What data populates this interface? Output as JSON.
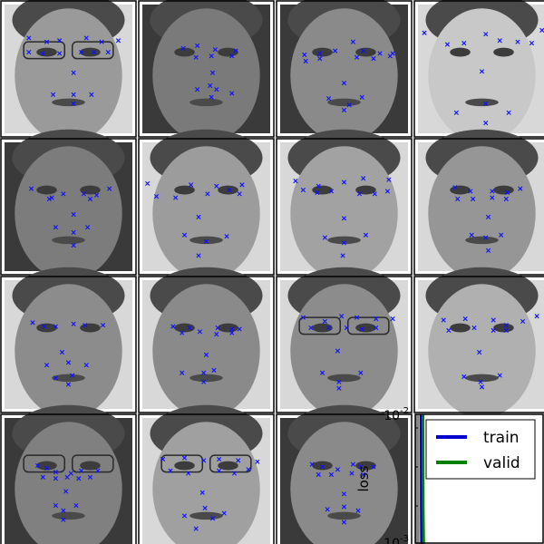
{
  "figure": {
    "grid": {
      "rows": 4,
      "cols": 4
    },
    "face_panels": [
      {
        "id": 1,
        "tone": "#9a9a9a",
        "dark_bg": false,
        "glasses": true,
        "keypoints": [
          [
            0.19,
            0.26
          ],
          [
            0.33,
            0.29
          ],
          [
            0.43,
            0.28
          ],
          [
            0.64,
            0.26
          ],
          [
            0.76,
            0.29
          ],
          [
            0.89,
            0.28
          ],
          [
            0.19,
            0.37
          ],
          [
            0.3,
            0.38
          ],
          [
            0.43,
            0.38
          ],
          [
            0.6,
            0.37
          ],
          [
            0.7,
            0.37
          ],
          [
            0.81,
            0.37
          ],
          [
            0.54,
            0.53
          ],
          [
            0.38,
            0.7
          ],
          [
            0.54,
            0.7
          ],
          [
            0.68,
            0.7
          ],
          [
            0.54,
            0.77
          ]
        ]
      },
      {
        "id": 2,
        "tone": "#7a7a7a",
        "dark_bg": true,
        "glasses": false,
        "keypoints": [
          [
            0.32,
            0.34
          ],
          [
            0.43,
            0.32
          ],
          [
            0.57,
            0.35
          ],
          [
            0.73,
            0.36
          ],
          [
            0.42,
            0.41
          ],
          [
            0.54,
            0.4
          ],
          [
            0.7,
            0.4
          ],
          [
            0.55,
            0.53
          ],
          [
            0.53,
            0.63
          ],
          [
            0.43,
            0.66
          ],
          [
            0.58,
            0.66
          ],
          [
            0.7,
            0.69
          ],
          [
            0.54,
            0.72
          ]
        ]
      },
      {
        "id": 3,
        "tone": "#8a8a8a",
        "dark_bg": true,
        "glasses": false,
        "keypoints": [
          [
            0.19,
            0.39
          ],
          [
            0.31,
            0.38
          ],
          [
            0.43,
            0.36
          ],
          [
            0.57,
            0.29
          ],
          [
            0.65,
            0.36
          ],
          [
            0.78,
            0.38
          ],
          [
            0.88,
            0.38
          ],
          [
            0.2,
            0.44
          ],
          [
            0.31,
            0.42
          ],
          [
            0.6,
            0.41
          ],
          [
            0.73,
            0.42
          ],
          [
            0.86,
            0.4
          ],
          [
            0.5,
            0.61
          ],
          [
            0.38,
            0.73
          ],
          [
            0.54,
            0.78
          ],
          [
            0.64,
            0.72
          ],
          [
            0.5,
            0.82
          ]
        ]
      },
      {
        "id": 4,
        "tone": "#c8c8c8",
        "dark_bg": false,
        "glasses": false,
        "keypoints": [
          [
            0.05,
            0.22
          ],
          [
            0.23,
            0.31
          ],
          [
            0.36,
            0.3
          ],
          [
            0.53,
            0.23
          ],
          [
            0.64,
            0.28
          ],
          [
            0.78,
            0.29
          ],
          [
            0.89,
            0.3
          ],
          [
            0.97,
            0.2
          ],
          [
            0.5,
            0.52
          ],
          [
            0.3,
            0.84
          ],
          [
            0.53,
            0.77
          ],
          [
            0.71,
            0.84
          ],
          [
            0.53,
            0.92
          ]
        ]
      },
      {
        "id": 5,
        "tone": "#7c7c7c",
        "dark_bg": true,
        "glasses": false,
        "keypoints": [
          [
            0.21,
            0.36
          ],
          [
            0.37,
            0.43
          ],
          [
            0.46,
            0.4
          ],
          [
            0.62,
            0.4
          ],
          [
            0.72,
            0.41
          ],
          [
            0.82,
            0.36
          ],
          [
            0.35,
            0.44
          ],
          [
            0.67,
            0.44
          ],
          [
            0.54,
            0.56
          ],
          [
            0.4,
            0.66
          ],
          [
            0.54,
            0.7
          ],
          [
            0.65,
            0.66
          ],
          [
            0.54,
            0.8
          ]
        ]
      },
      {
        "id": 6,
        "tone": "#9c9c9c",
        "dark_bg": false,
        "glasses": false,
        "keypoints": [
          [
            0.04,
            0.32
          ],
          [
            0.11,
            0.42
          ],
          [
            0.38,
            0.33
          ],
          [
            0.58,
            0.34
          ],
          [
            0.78,
            0.33
          ],
          [
            0.26,
            0.43
          ],
          [
            0.51,
            0.4
          ],
          [
            0.68,
            0.37
          ],
          [
            0.76,
            0.4
          ],
          [
            0.44,
            0.58
          ],
          [
            0.33,
            0.72
          ],
          [
            0.5,
            0.77
          ],
          [
            0.66,
            0.73
          ],
          [
            0.44,
            0.88
          ]
        ]
      },
      {
        "id": 7,
        "tone": "#a2a2a2",
        "dark_bg": false,
        "glasses": false,
        "keypoints": [
          [
            0.12,
            0.3
          ],
          [
            0.3,
            0.34
          ],
          [
            0.5,
            0.31
          ],
          [
            0.65,
            0.28
          ],
          [
            0.85,
            0.29
          ],
          [
            0.18,
            0.37
          ],
          [
            0.29,
            0.39
          ],
          [
            0.4,
            0.38
          ],
          [
            0.62,
            0.4
          ],
          [
            0.74,
            0.4
          ],
          [
            0.84,
            0.38
          ],
          [
            0.5,
            0.59
          ],
          [
            0.35,
            0.74
          ],
          [
            0.5,
            0.78
          ],
          [
            0.67,
            0.72
          ],
          [
            0.49,
            0.88
          ]
        ]
      },
      {
        "id": 8,
        "tone": "#969696",
        "dark_bg": false,
        "glasses": false,
        "keypoints": [
          [
            0.29,
            0.35
          ],
          [
            0.41,
            0.38
          ],
          [
            0.58,
            0.38
          ],
          [
            0.7,
            0.39
          ],
          [
            0.8,
            0.36
          ],
          [
            0.31,
            0.44
          ],
          [
            0.43,
            0.44
          ],
          [
            0.58,
            0.43
          ],
          [
            0.69,
            0.44
          ],
          [
            0.55,
            0.58
          ],
          [
            0.42,
            0.72
          ],
          [
            0.53,
            0.74
          ],
          [
            0.65,
            0.72
          ],
          [
            0.55,
            0.84
          ]
        ]
      },
      {
        "id": 9,
        "tone": "#8c8c8c",
        "dark_bg": false,
        "glasses": false,
        "keypoints": [
          [
            0.22,
            0.33
          ],
          [
            0.31,
            0.36
          ],
          [
            0.4,
            0.36
          ],
          [
            0.54,
            0.34
          ],
          [
            0.63,
            0.35
          ],
          [
            0.77,
            0.35
          ],
          [
            0.45,
            0.56
          ],
          [
            0.33,
            0.66
          ],
          [
            0.5,
            0.64
          ],
          [
            0.64,
            0.66
          ],
          [
            0.4,
            0.76
          ],
          [
            0.53,
            0.74
          ],
          [
            0.5,
            0.81
          ]
        ]
      },
      {
        "id": 10,
        "tone": "#8a8a8a",
        "dark_bg": false,
        "glasses": false,
        "keypoints": [
          [
            0.24,
            0.36
          ],
          [
            0.37,
            0.37
          ],
          [
            0.45,
            0.4
          ],
          [
            0.59,
            0.37
          ],
          [
            0.7,
            0.38
          ],
          [
            0.76,
            0.38
          ],
          [
            0.31,
            0.41
          ],
          [
            0.58,
            0.42
          ],
          [
            0.7,
            0.41
          ],
          [
            0.5,
            0.58
          ],
          [
            0.31,
            0.72
          ],
          [
            0.48,
            0.72
          ],
          [
            0.56,
            0.7
          ],
          [
            0.48,
            0.79
          ]
        ]
      },
      {
        "id": 11,
        "tone": "#8c8c8c",
        "dark_bg": false,
        "glasses": true,
        "keypoints": [
          [
            0.18,
            0.29
          ],
          [
            0.35,
            0.32
          ],
          [
            0.48,
            0.28
          ],
          [
            0.6,
            0.29
          ],
          [
            0.75,
            0.3
          ],
          [
            0.88,
            0.3
          ],
          [
            0.24,
            0.37
          ],
          [
            0.38,
            0.37
          ],
          [
            0.52,
            0.37
          ],
          [
            0.64,
            0.38
          ],
          [
            0.75,
            0.37
          ],
          [
            0.45,
            0.55
          ],
          [
            0.33,
            0.72
          ],
          [
            0.46,
            0.79
          ],
          [
            0.63,
            0.72
          ],
          [
            0.46,
            0.84
          ]
        ]
      },
      {
        "id": 12,
        "tone": "#b0b0b0",
        "dark_bg": false,
        "glasses": false,
        "keypoints": [
          [
            0.2,
            0.31
          ],
          [
            0.37,
            0.3
          ],
          [
            0.44,
            0.37
          ],
          [
            0.59,
            0.31
          ],
          [
            0.69,
            0.35
          ],
          [
            0.82,
            0.32
          ],
          [
            0.93,
            0.28
          ],
          [
            0.24,
            0.39
          ],
          [
            0.59,
            0.39
          ],
          [
            0.69,
            0.39
          ],
          [
            0.48,
            0.56
          ],
          [
            0.36,
            0.75
          ],
          [
            0.49,
            0.79
          ],
          [
            0.64,
            0.74
          ],
          [
            0.5,
            0.83
          ]
        ]
      },
      {
        "id": 13,
        "tone": "#808080",
        "dark_bg": true,
        "glasses": true,
        "keypoints": [
          [
            0.26,
            0.37
          ],
          [
            0.33,
            0.39
          ],
          [
            0.4,
            0.42
          ],
          [
            0.52,
            0.43
          ],
          [
            0.6,
            0.41
          ],
          [
            0.73,
            0.41
          ],
          [
            0.3,
            0.46
          ],
          [
            0.4,
            0.47
          ],
          [
            0.49,
            0.46
          ],
          [
            0.58,
            0.47
          ],
          [
            0.67,
            0.46
          ],
          [
            0.48,
            0.57
          ],
          [
            0.4,
            0.68
          ],
          [
            0.46,
            0.72
          ],
          [
            0.56,
            0.68
          ],
          [
            0.46,
            0.79
          ]
        ]
      },
      {
        "id": 14,
        "tone": "#a0a0a0",
        "dark_bg": false,
        "glasses": true,
        "keypoints": [
          [
            0.16,
            0.32
          ],
          [
            0.33,
            0.31
          ],
          [
            0.48,
            0.33
          ],
          [
            0.6,
            0.32
          ],
          [
            0.75,
            0.33
          ],
          [
            0.9,
            0.34
          ],
          [
            0.22,
            0.41
          ],
          [
            0.36,
            0.43
          ],
          [
            0.6,
            0.41
          ],
          [
            0.72,
            0.43
          ],
          [
            0.83,
            0.4
          ],
          [
            0.47,
            0.58
          ],
          [
            0.33,
            0.76
          ],
          [
            0.49,
            0.7
          ],
          [
            0.55,
            0.78
          ],
          [
            0.64,
            0.74
          ],
          [
            0.42,
            0.86
          ]
        ]
      },
      {
        "id": 15,
        "tone": "#8a8a8a",
        "dark_bg": true,
        "glasses": false,
        "keypoints": [
          [
            0.25,
            0.36
          ],
          [
            0.33,
            0.38
          ],
          [
            0.45,
            0.4
          ],
          [
            0.57,
            0.36
          ],
          [
            0.63,
            0.38
          ],
          [
            0.73,
            0.38
          ],
          [
            0.3,
            0.44
          ],
          [
            0.4,
            0.44
          ],
          [
            0.56,
            0.43
          ],
          [
            0.65,
            0.44
          ],
          [
            0.5,
            0.59
          ],
          [
            0.37,
            0.71
          ],
          [
            0.5,
            0.69
          ],
          [
            0.61,
            0.72
          ],
          [
            0.5,
            0.81
          ]
        ]
      }
    ],
    "loss_plot": {
      "ylabel": "loss",
      "yscale": "log",
      "ytick_labels": [
        "10^-2",
        "10^-3"
      ],
      "legend_location": "upper-right",
      "series": [
        {
          "name": "train",
          "color": "#0000cc"
        },
        {
          "name": "valid",
          "color": "#008000"
        }
      ]
    }
  }
}
